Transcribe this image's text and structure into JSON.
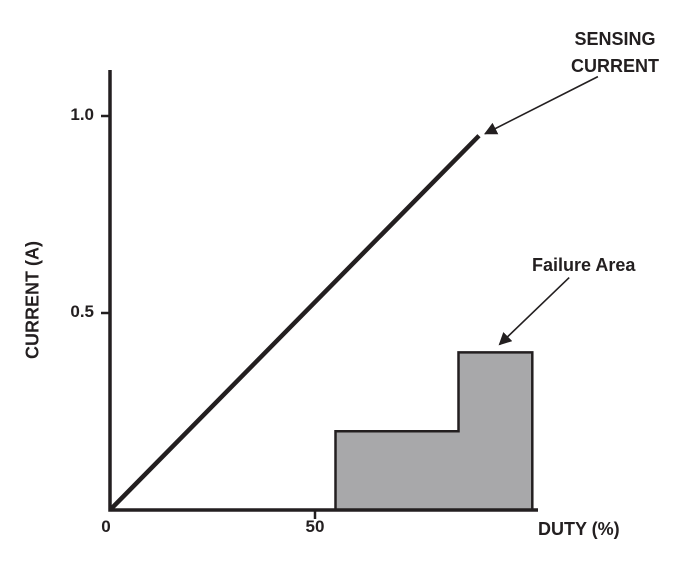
{
  "figure": {
    "background": "#ffffff",
    "ink_color": "#231f20"
  },
  "chart_data": {
    "type": "line",
    "title": "",
    "xlabel": "DUTY (%)",
    "ylabel": "CURRENT (A)",
    "xlim": [
      0,
      105
    ],
    "ylim": [
      0,
      1.12
    ],
    "grid": false,
    "legend": "none",
    "x_ticks": [
      {
        "value": 0,
        "label": "0"
      },
      {
        "value": 50,
        "label": "50"
      }
    ],
    "y_ticks": [
      {
        "value": 0.5,
        "label": "0.5"
      },
      {
        "value": 1.0,
        "label": "1.0"
      }
    ],
    "series": [
      {
        "name": "Failure Area",
        "type": "area",
        "fill": "#a8a8aa",
        "stroke": "#231f20",
        "points": [
          [
            55,
            0
          ],
          [
            55,
            0.2
          ],
          [
            85,
            0.2
          ],
          [
            85,
            0.4
          ],
          [
            103,
            0.4
          ],
          [
            103,
            0
          ]
        ]
      },
      {
        "name": "SENSING CURRENT",
        "type": "line",
        "color": "#231f20",
        "points": [
          [
            0,
            0
          ],
          [
            90,
            0.95
          ]
        ]
      }
    ],
    "annotations": [
      {
        "label": "SENSING CURRENT",
        "arrow_from": [
          119,
          1.1
        ],
        "arrow_to": [
          91.5,
          0.955
        ]
      },
      {
        "label": "Failure Area",
        "arrow_from": [
          112,
          0.59
        ],
        "arrow_to": [
          95,
          0.42
        ]
      }
    ]
  }
}
